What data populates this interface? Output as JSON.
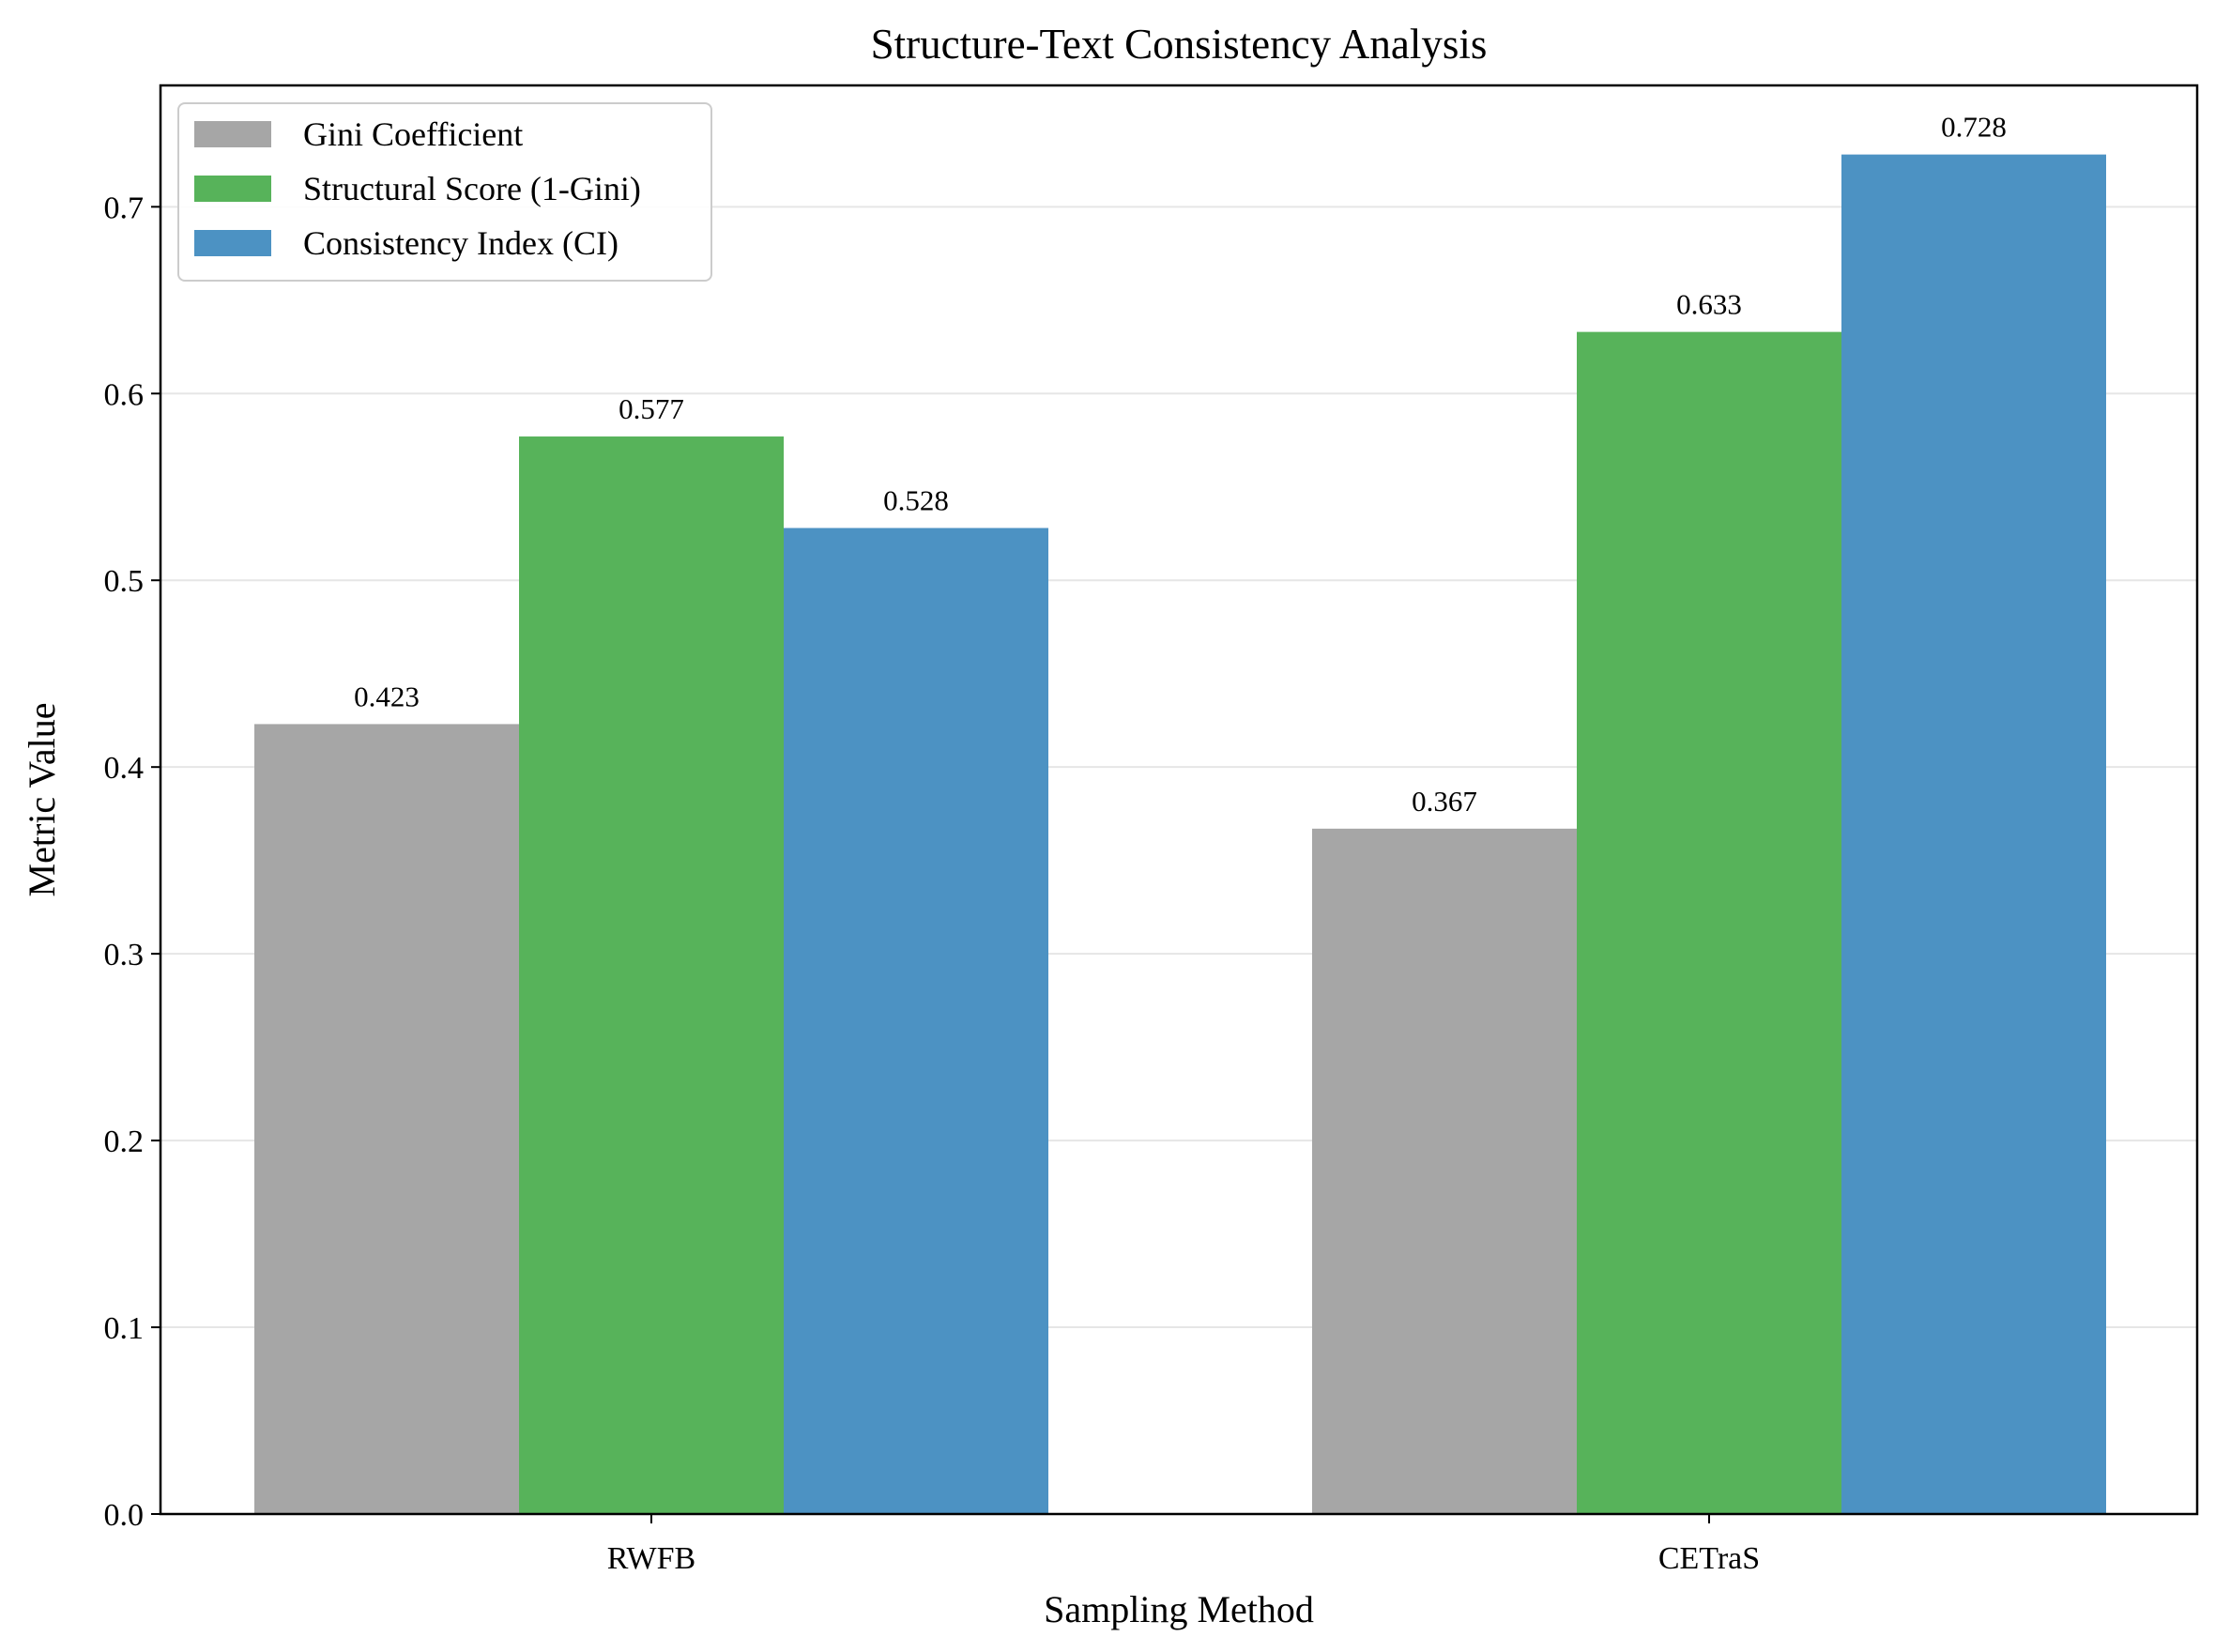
{
  "chart_data": {
    "type": "bar",
    "title": "Structure-Text Consistency Analysis",
    "xlabel": "Sampling Method",
    "ylabel": "Metric Value",
    "categories": [
      "RWFB",
      "CETraS"
    ],
    "series": [
      {
        "name": "Gini Coefficient",
        "values": [
          0.423,
          0.367
        ],
        "color": "#a6a6a6"
      },
      {
        "name": "Structural Score (1-Gini)",
        "values": [
          0.577,
          0.633
        ],
        "color": "#57b35a"
      },
      {
        "name": "Consistency Index (CI)",
        "values": [
          0.528,
          0.728
        ],
        "color": "#4c92c3"
      }
    ],
    "value_labels": [
      [
        "0.423",
        "0.367"
      ],
      [
        "0.577",
        "0.633"
      ],
      [
        "0.528",
        "0.728"
      ]
    ],
    "yticks": [
      "0.0",
      "0.1",
      "0.2",
      "0.3",
      "0.4",
      "0.5",
      "0.6",
      "0.7"
    ],
    "ylim": [
      0,
      0.765
    ],
    "grid": "y",
    "legend_position": "top-left"
  }
}
